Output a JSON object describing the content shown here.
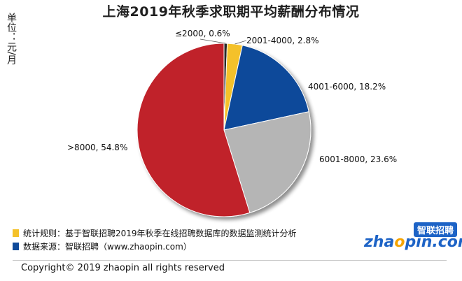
{
  "title": "上海2019年秋季求职期平均薪酬分布情况",
  "unit": "单位：元/月",
  "chart_data": {
    "type": "pie",
    "title": "上海2019年秋季求职期平均薪酬分布情况",
    "slices": [
      {
        "label": "≤2000",
        "value": 0.6,
        "text": "≤2000, 0.6%",
        "color": "#2b2b2b"
      },
      {
        "label": "2001-4000",
        "value": 2.8,
        "text": "2001-4000,  2.8%",
        "color": "#f4c12a"
      },
      {
        "label": "4001-6000",
        "value": 18.2,
        "text": "4001-6000,  18.2%",
        "color": "#0f4a9a"
      },
      {
        "label": "6001-8000",
        "value": 23.6,
        "text": "6001-8000,  23.6%",
        "color": "#b5b5b5"
      },
      {
        "label": ">8000",
        "value": 54.8,
        "text": ">8000,  54.8%",
        "color": "#c0202a"
      }
    ]
  },
  "legend": [
    {
      "text": "统计规则：基于智联招聘2019年秋季在线招聘数据库的数据监测统计分析",
      "color": "#f4c12a"
    },
    {
      "text": "数据来源：智联招聘（www.zhaopin.com）",
      "color": "#0f4a9a"
    }
  ],
  "logo": {
    "cn": "智联招聘",
    "en_pre": "zha",
    "en_o": "o",
    "en_post": "pin.com"
  },
  "copyright": "Copyright© 2019 zhaopin all rights reserved"
}
